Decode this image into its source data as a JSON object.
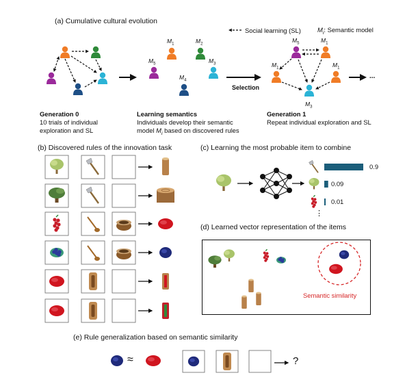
{
  "panel_a": {
    "title": "(a) Cumulative cultural evolution",
    "legend_sl": "Social learning (SL)",
    "legend_model": "M",
    "legend_model_sub": "i",
    "legend_model_rest": ": Semantic model",
    "gen0": {
      "title": "Generation 0",
      "line1": "10 trials of individual",
      "line2": "exploration and SL"
    },
    "semantics": {
      "title": "Learning semantics",
      "line1": "Individuals develop their semantic",
      "line2a": "model ",
      "line2b": "M",
      "line2c": "i",
      "line2d": " based on discovered rules"
    },
    "gen1": {
      "title": "Generation 1",
      "line1": "Repeat individual exploration and SL"
    },
    "selection": "Selection",
    "ellipsis": "...",
    "model_labels": [
      "M1",
      "M2",
      "M5",
      "M3",
      "M4"
    ]
  },
  "panel_b": {
    "title": "(b) Discovered rules of the innovation task",
    "rules": [
      {
        "a": "tree",
        "b": "axe",
        "c": "",
        "out": "log"
      },
      {
        "a": "big-tree",
        "b": "axe",
        "c": "",
        "out": "big-log"
      },
      {
        "a": "red-berries",
        "b": "spoon",
        "c": "bowl",
        "out": "red-powder"
      },
      {
        "a": "blue-berries",
        "b": "spoon",
        "c": "bowl",
        "out": "blue-powder"
      },
      {
        "a": "red-powder",
        "b": "hollow-log",
        "c": "",
        "out": "red-log"
      },
      {
        "a": "red-powder",
        "b": "hollow-log",
        "c": "",
        "out": "red-log-2"
      }
    ]
  },
  "panel_c": {
    "title": "(c) Learning the most probable item to combine",
    "bars": [
      {
        "item": "axe",
        "value": 0.9,
        "label": "0.9"
      },
      {
        "item": "tree",
        "value": 0.09,
        "label": "0.09"
      },
      {
        "item": "red-berries",
        "value": 0.01,
        "label": "0.01"
      }
    ],
    "more": "⋮"
  },
  "panel_d": {
    "title": "(d) Learned vector representation of the items",
    "similarity_label": "Semantic similarity"
  },
  "panel_e": {
    "title": "(e) Rule generalization based on semantic similarity",
    "approx": "≈",
    "question": "?"
  },
  "colors": {
    "orange": "#f07c26",
    "green": "#2f8a3a",
    "purple": "#9b2a9b",
    "cyan": "#2bb3d6",
    "navy": "#1e4f86",
    "bar": "#1b5e7a",
    "red": "#d62728"
  }
}
